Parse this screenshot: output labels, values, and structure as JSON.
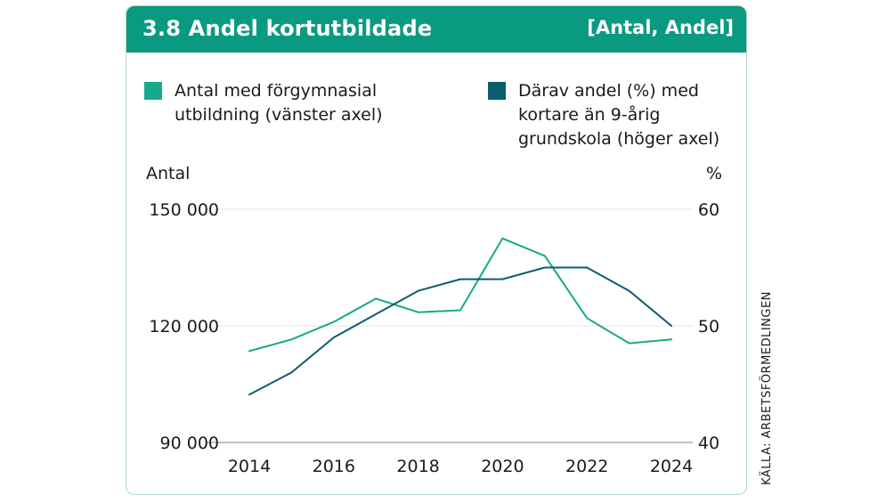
{
  "header": {
    "title": "3.8  Andel kortutbildade",
    "unit": "[Antal, Andel]"
  },
  "legend": [
    {
      "line1": "Antal med förgymnasial",
      "line2": "utbildning (vänster axel)",
      "line3": "",
      "color": "#17a98a"
    },
    {
      "line1": "Därav andel (%) med",
      "line2": "kortare än 9-årig",
      "line3": "grundskola (höger axel)",
      "color": "#0b5e6b"
    }
  ],
  "source": "KÄLLA: ARBETSFÖRMEDLINGEN",
  "colors": {
    "header": "#0a9a80",
    "series1": "#17a98a",
    "series2": "#0b5e6b",
    "grid": "#e6e6e6",
    "border": "#a8d9c9"
  },
  "chart_data": {
    "type": "line",
    "x": [
      2014,
      2015,
      2016,
      2017,
      2018,
      2019,
      2020,
      2021,
      2022,
      2023,
      2024
    ],
    "xticks": [
      "2014",
      "2016",
      "2018",
      "2020",
      "2022",
      "2024"
    ],
    "ylabel_left": "Antal",
    "ylabel_right": "%",
    "ylim_left": [
      90000,
      150000
    ],
    "ylim_right": [
      40,
      60
    ],
    "yticks_left": [
      "90 000",
      "120 000",
      "150 000"
    ],
    "yticks_right": [
      "40",
      "50",
      "60"
    ],
    "grid": true,
    "legend_position": "top",
    "series": [
      {
        "name": "Antal med förgymnasial utbildning (vänster axel)",
        "axis": "left",
        "values": [
          113500,
          116500,
          121000,
          127000,
          123500,
          124000,
          142500,
          138000,
          122000,
          115500,
          116500
        ]
      },
      {
        "name": "Därav andel (%) med kortare än 9-årig grundskola (höger axel)",
        "axis": "right",
        "values": [
          44.1,
          46.0,
          49.0,
          51.0,
          53.0,
          54.0,
          54.0,
          55.0,
          55.0,
          53.0,
          50.0
        ]
      }
    ]
  }
}
